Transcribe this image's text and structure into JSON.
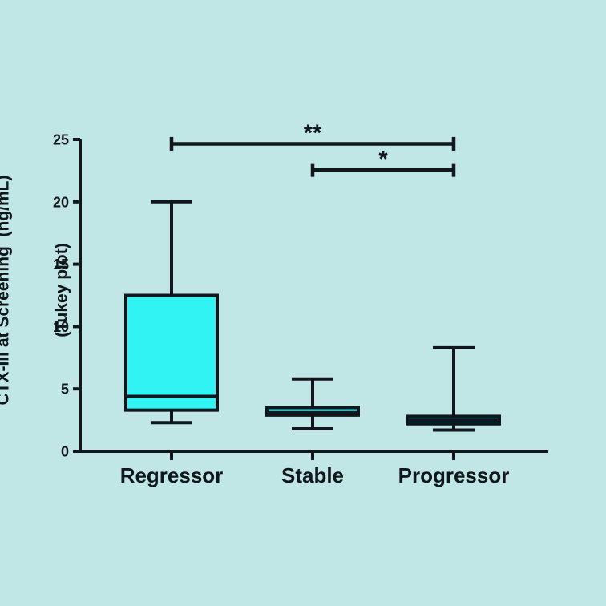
{
  "chart_data": {
    "type": "boxplot",
    "title": "",
    "ylabel_line1": "CTX-III at Screening  (ng/mL)",
    "ylabel_line2": "(Tukey plot)",
    "xlabel": "",
    "categories": [
      "Regressor",
      "Stable",
      "Progressor"
    ],
    "ylim": [
      0,
      25
    ],
    "yticks": [
      0,
      5,
      10,
      15,
      20,
      25
    ],
    "grid": false,
    "legend": "none",
    "series": [
      {
        "category": "Regressor",
        "whisker_low": 2.3,
        "q1": 3.3,
        "median": 4.4,
        "q3": 12.5,
        "whisker_high": 20.0
      },
      {
        "category": "Stable",
        "whisker_low": 1.8,
        "q1": 2.9,
        "median": 3.1,
        "q3": 3.5,
        "whisker_high": 5.8
      },
      {
        "category": "Progressor",
        "whisker_low": 1.7,
        "q1": 2.2,
        "median": 2.5,
        "q3": 2.8,
        "whisker_high": 8.3
      }
    ],
    "annotations": [
      {
        "type": "comparison-bar",
        "from": "Regressor",
        "to": "Progressor",
        "label": "**",
        "y": 24.65
      },
      {
        "type": "comparison-bar",
        "from": "Stable",
        "to": "Progressor",
        "label": "*",
        "y": 22.55
      }
    ],
    "colors": {
      "background": "#c0e7e5",
      "box_fill": "#31f3f3",
      "line": "#10161b",
      "text": "#10161b"
    }
  }
}
